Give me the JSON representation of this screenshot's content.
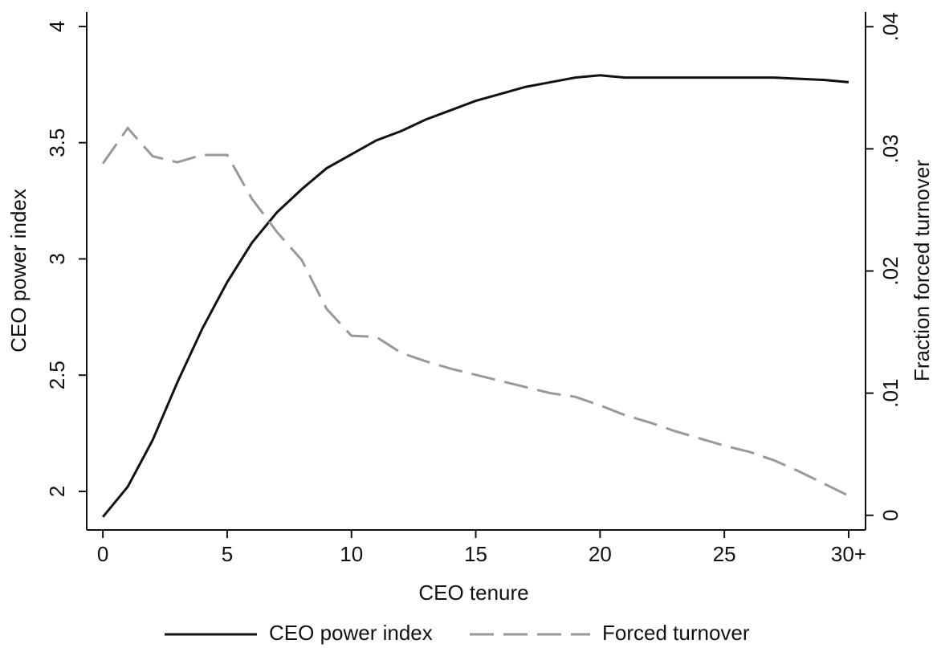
{
  "chart_data": {
    "type": "line",
    "xlabel": "CEO tenure",
    "ylabel": "CEO power index",
    "y2label": "Fraction forced turnover",
    "x": [
      0,
      1,
      2,
      3,
      4,
      5,
      6,
      7,
      8,
      9,
      10,
      11,
      12,
      13,
      14,
      15,
      16,
      17,
      18,
      19,
      20,
      21,
      22,
      23,
      24,
      25,
      26,
      27,
      28,
      29,
      30
    ],
    "series": [
      {
        "name": "CEO power index",
        "color": "#111111",
        "dash": "solid",
        "values": [
          1.89,
          2.02,
          2.22,
          2.47,
          2.7,
          2.9,
          3.07,
          3.2,
          3.3,
          3.39,
          3.45,
          3.51,
          3.55,
          3.6,
          3.64,
          3.68,
          3.71,
          3.74,
          3.76,
          3.78,
          3.79,
          3.78,
          3.78,
          3.78,
          3.78,
          3.78,
          3.78,
          3.78,
          3.775,
          3.77,
          3.76
        ]
      },
      {
        "name": "Forced turnover",
        "color": "#999999",
        "dash": "dashed",
        "axis": "y2",
        "values": [
          0.0288,
          0.0317,
          0.0294,
          0.0289,
          0.0295,
          0.0295,
          0.0259,
          0.0232,
          0.0209,
          0.0169,
          0.0147,
          0.0146,
          0.0133,
          0.0126,
          0.012,
          0.0115,
          0.011,
          0.0105,
          0.01,
          0.0097,
          0.009,
          0.0082,
          0.0076,
          0.0069,
          0.0063,
          0.0057,
          0.0052,
          0.0045,
          0.0036,
          0.0026,
          0.0016
        ]
      }
    ],
    "xlim": [
      -0.65,
      30.68
    ],
    "xticks": [
      0,
      5,
      10,
      15,
      20,
      25,
      {
        "value": 30,
        "label": "30+"
      }
    ],
    "ylim": [
      1.834,
      4.062
    ],
    "yticks": [
      2,
      2.5,
      3,
      3.5,
      4
    ],
    "y2lim": [
      -0.0012,
      0.0412
    ],
    "y2ticks": [
      0,
      {
        "value": 0.01,
        "label": ".01"
      },
      {
        "value": 0.02,
        "label": ".02"
      },
      {
        "value": 0.03,
        "label": ".03"
      },
      {
        "value": 0.04,
        "label": ".04"
      }
    ],
    "grid": false,
    "legend": "bottom"
  }
}
